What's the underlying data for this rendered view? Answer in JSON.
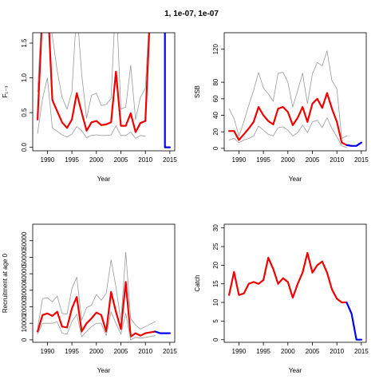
{
  "title": "1, 1e-07, 1e-07",
  "colors": {
    "estimate": "#ee0000",
    "interval": "#999999",
    "projection": "#0000ee",
    "frame": "#000000"
  },
  "chart_data": [
    {
      "type": "line",
      "ylabel": "F₁₋₃",
      "xlabel": "Year",
      "xlim": [
        1987,
        2016
      ],
      "ylim": [
        -0.05,
        1.65
      ],
      "xticks": [
        1990,
        1995,
        2000,
        2005,
        2010,
        2015
      ],
      "yticks": [
        0.0,
        0.5,
        1.0,
        1.5
      ],
      "ytick_labels": [
        "0.0",
        "0.5",
        "1.0",
        "1.5"
      ],
      "ytick_rotate": true,
      "series": [
        {
          "role": "estimate",
          "x": [
            1988,
            1989,
            1990,
            1991,
            1992,
            1993,
            1994,
            1995,
            1996,
            1997,
            1998,
            1999,
            2000,
            2001,
            2002,
            2003,
            2004,
            2005,
            2006,
            2007,
            2008,
            2009,
            2010
          ],
          "y": [
            0.4,
            2.0,
            2.2,
            0.68,
            0.52,
            0.36,
            0.28,
            0.4,
            0.78,
            0.5,
            0.24,
            0.36,
            0.38,
            0.32,
            0.33,
            0.36,
            1.09,
            0.31,
            0.31,
            0.49,
            0.22,
            0.35,
            0.38
          ]
        },
        {
          "role": "estimate_end",
          "x": [
            2010,
            2011
          ],
          "y": [
            0.38,
            2.0
          ]
        },
        {
          "role": "interval",
          "x": [
            1988,
            1989,
            1990,
            1991,
            1992,
            1993,
            1994,
            1995,
            1996,
            1997,
            1998,
            1999,
            2000,
            2001,
            2002,
            2003,
            2004,
            2005,
            2006,
            2007,
            2008,
            2009,
            2010
          ],
          "y": [
            0.2,
            0.7,
            1.0,
            0.28,
            0.23,
            0.18,
            0.15,
            0.19,
            0.3,
            0.24,
            0.14,
            0.17,
            0.18,
            0.17,
            0.17,
            0.18,
            0.31,
            0.17,
            0.17,
            0.22,
            0.13,
            0.17,
            0.16
          ]
        },
        {
          "role": "interval",
          "x": [
            1988,
            1989,
            1990,
            1991,
            1992,
            1993,
            1994,
            1995,
            1996,
            1997,
            1998,
            1999,
            2000,
            2001,
            2002,
            2003,
            2004,
            2005,
            2006,
            2007,
            2008,
            2009,
            2010,
            2011
          ],
          "y": [
            0.8,
            2.2,
            2.2,
            1.6,
            1.1,
            0.72,
            0.55,
            0.8,
            2.0,
            1.05,
            0.42,
            0.75,
            0.78,
            0.6,
            0.62,
            0.7,
            2.2,
            0.55,
            0.58,
            1.18,
            0.4,
            0.72,
            0.85,
            2.2
          ]
        },
        {
          "role": "projection",
          "x": [
            2014,
            2014,
            2015
          ],
          "y": [
            2.0,
            0.0,
            0.0
          ]
        }
      ]
    },
    {
      "type": "line",
      "ylabel": "SSB",
      "xlabel": "Year",
      "xlim": [
        1987,
        2016
      ],
      "ylim": [
        -3,
        140
      ],
      "xticks": [
        1990,
        1995,
        2000,
        2005,
        2010,
        2015
      ],
      "yticks": [
        0,
        20,
        40,
        60,
        80,
        120
      ],
      "ytick_labels": [
        "0",
        "20",
        "40",
        "60",
        "80",
        "120"
      ],
      "ytick_rotate": true,
      "series": [
        {
          "role": "estimate",
          "x": [
            1988,
            1989,
            1990,
            1991,
            1992,
            1993,
            1994,
            1995,
            1996,
            1997,
            1998,
            1999,
            2000,
            2001,
            2002,
            2003,
            2004,
            2005,
            2006,
            2007,
            2008,
            2009,
            2010,
            2011,
            2012,
            2013
          ],
          "y": [
            21,
            21,
            10,
            17,
            24,
            32,
            50,
            40,
            33,
            29,
            48,
            50,
            44,
            28,
            37,
            50,
            32,
            54,
            60,
            49,
            67,
            48,
            32,
            7,
            4,
            3
          ]
        },
        {
          "role": "interval",
          "x": [
            1988,
            1989,
            1990,
            1991,
            1992,
            1993,
            1994,
            1995,
            1996,
            1997,
            1998,
            1999,
            2000,
            2001,
            2002,
            2003,
            2004,
            2005,
            2006,
            2007,
            2008,
            2009,
            2010,
            2011,
            2012
          ],
          "y": [
            10,
            12,
            7,
            10,
            12,
            15,
            27,
            22,
            17,
            15,
            25,
            26,
            22,
            15,
            19,
            28,
            19,
            32,
            34,
            25,
            37,
            24,
            14,
            3,
            1
          ]
        },
        {
          "role": "interval",
          "x": [
            1988,
            1989,
            1990,
            1991,
            1992,
            1993,
            1994,
            1995,
            1996,
            1997,
            1998,
            1999,
            2000,
            2001,
            2002,
            2003,
            2004,
            2005,
            2006,
            2007,
            2008,
            2009,
            2010,
            2011,
            2012
          ],
          "y": [
            48,
            36,
            15,
            32,
            52,
            70,
            92,
            73,
            66,
            57,
            91,
            92,
            80,
            50,
            70,
            91,
            54,
            90,
            104,
            100,
            118,
            82,
            72,
            12,
            15
          ]
        },
        {
          "role": "projection",
          "x": [
            2012,
            2013,
            2014,
            2015
          ],
          "y": [
            4,
            3,
            3,
            7
          ]
        }
      ]
    },
    {
      "type": "line",
      "ylabel": "Recruitment at age 0",
      "xlabel": "Year",
      "xlim": [
        1987,
        2016
      ],
      "ylim": [
        -1500,
        70000
      ],
      "xticks": [
        1990,
        1995,
        2000,
        2005,
        2010,
        2015
      ],
      "yticks": [
        0,
        10000,
        20000,
        30000,
        40000,
        50000,
        60000
      ],
      "ytick_labels": [
        "0",
        "10000",
        "20000",
        "30000",
        "40000",
        "50000",
        "60000"
      ],
      "ytick_rotate": true,
      "series": [
        {
          "role": "estimate",
          "x": [
            1988,
            1989,
            1990,
            1991,
            1992,
            1993,
            1994,
            1995,
            1996,
            1997,
            1998,
            1999,
            2000,
            2001,
            2002,
            2003,
            2004,
            2005,
            2006,
            2007,
            2008,
            2009,
            2010,
            2011,
            2012
          ],
          "y": [
            5000,
            15000,
            16000,
            14500,
            17000,
            8000,
            7500,
            19000,
            26000,
            5000,
            10000,
            13000,
            16500,
            15000,
            5000,
            29000,
            17000,
            6500,
            35000,
            2000,
            4000,
            2500,
            4000,
            4500,
            5000
          ]
        },
        {
          "role": "interval",
          "x": [
            1988,
            1989,
            1990,
            1991,
            1992,
            1993,
            1994,
            1995,
            1996,
            1997,
            1998,
            1999,
            2000,
            2001,
            2002,
            2003,
            2004,
            2005,
            2006,
            2007,
            2008,
            2009,
            2010,
            2011,
            2012
          ],
          "y": [
            3500,
            10000,
            10000,
            10000,
            11000,
            4000,
            3500,
            11000,
            15500,
            2000,
            5000,
            8000,
            10000,
            10000,
            2500,
            17000,
            10000,
            3500,
            16000,
            0,
            1500,
            1000,
            1500,
            2000,
            2500
          ]
        },
        {
          "role": "interval",
          "x": [
            1988,
            1989,
            1990,
            1991,
            1992,
            1993,
            1994,
            1995,
            1996,
            1997,
            1998,
            1999,
            2000,
            2001,
            2002,
            2003,
            2004,
            2005,
            2006,
            2007,
            2008,
            2009,
            2010,
            2011,
            2012
          ],
          "y": [
            7000,
            25000,
            25500,
            23000,
            26500,
            16000,
            15500,
            31000,
            38000,
            12000,
            19500,
            21000,
            27500,
            24000,
            28000,
            48500,
            32000,
            11000,
            53000,
            13000,
            9000,
            6500,
            8000,
            9500,
            11000
          ]
        },
        {
          "role": "projection",
          "x": [
            2012,
            2013,
            2014,
            2015
          ],
          "y": [
            5000,
            4000,
            4000,
            4000
          ]
        }
      ]
    },
    {
      "type": "line",
      "ylabel": "Catch",
      "xlabel": "Year",
      "xlim": [
        1987,
        2016
      ],
      "ylim": [
        -0.7,
        31
      ],
      "xticks": [
        1990,
        1995,
        2000,
        2005,
        2010,
        2015
      ],
      "yticks": [
        0,
        5,
        10,
        15,
        20,
        25,
        30
      ],
      "ytick_labels": [
        "0",
        "5",
        "10",
        "15",
        "20",
        "25",
        "30"
      ],
      "ytick_rotate": true,
      "series": [
        {
          "role": "estimate",
          "x": [
            1988,
            1989,
            1990,
            1991,
            1992,
            1993,
            1994,
            1995,
            1996,
            1997,
            1998,
            1999,
            2000,
            2001,
            2002,
            2003,
            2004,
            2005,
            2006,
            2007,
            2008,
            2009,
            2010,
            2011,
            2012
          ],
          "y": [
            12,
            18.2,
            12,
            12.4,
            15,
            15.5,
            15,
            16,
            22,
            19,
            15,
            16.5,
            15.5,
            11.3,
            15,
            18,
            23.3,
            18,
            20,
            21,
            18,
            13.5,
            11,
            10,
            10
          ]
        },
        {
          "role": "projection",
          "x": [
            2012,
            2013,
            2014,
            2015
          ],
          "y": [
            10,
            7,
            0,
            0
          ]
        }
      ]
    }
  ]
}
